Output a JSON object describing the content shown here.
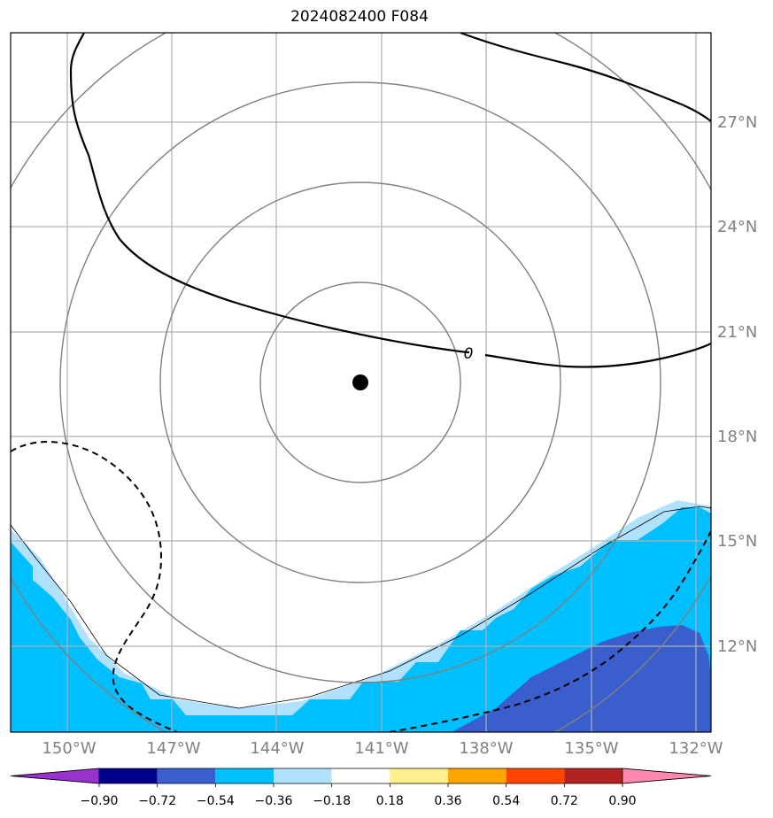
{
  "title": "2024082400 F084",
  "map": {
    "lat_ticks": [
      "27°N",
      "24°N",
      "21°N",
      "18°N",
      "15°N",
      "12°N"
    ],
    "lon_ticks": [
      "150°W",
      "147°W",
      "144°W",
      "141°W",
      "138°W",
      "135°W",
      "132°W"
    ],
    "contour_zero_label": "0",
    "center_marker": "storm-center"
  },
  "colorbar": {
    "labels": [
      "−0.90",
      "−0.72",
      "−0.54",
      "−0.36",
      "−0.18",
      "0.18",
      "0.36",
      "0.54",
      "0.72",
      "0.90"
    ],
    "colors": [
      "#9932cc",
      "#00008b",
      "#3a5fcd",
      "#00bfff",
      "#b0e2ff",
      "#ffffff",
      "#fff08c",
      "#ffa500",
      "#ff4500",
      "#b22222",
      "#ff88b0"
    ]
  }
}
